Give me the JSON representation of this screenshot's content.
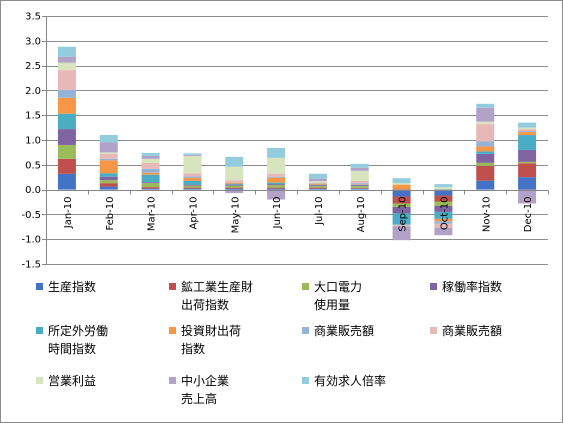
{
  "chart_data": {
    "type": "bar",
    "stacked": true,
    "categories": [
      "Jan-10",
      "Feb-10",
      "Mar-10",
      "Apr-10",
      "May-10",
      "Jun-10",
      "Jul-10",
      "Aug-10",
      "Sep-10",
      "Oct-10",
      "Nov-10",
      "Dec-10"
    ],
    "ylim": [
      -1.5,
      3.5
    ],
    "yticks": [
      "3.5",
      "3.0",
      "2.5",
      "2.0",
      "1.5",
      "1.0",
      "0.5",
      "0.0",
      "-0.5",
      "-1.0",
      "-1.5"
    ],
    "ytick_values": [
      3.5,
      3.0,
      2.5,
      2.0,
      1.5,
      1.0,
      0.5,
      0.0,
      -0.5,
      -1.0,
      -1.5
    ],
    "grid": true,
    "legend_position": "bottom",
    "series": [
      {
        "name": "生産指数",
        "legend_label": "生産指数",
        "color": "#4472C4",
        "values": [
          0.32,
          0.06,
          0.02,
          0.02,
          0.02,
          0.02,
          0.02,
          0.02,
          -0.14,
          -0.12,
          0.18,
          0.25
        ]
      },
      {
        "name": "鉱工業生産財出荷指数",
        "legend_label": "鉱工業生産財\n出荷指数",
        "color": "#C0504D",
        "values": [
          0.3,
          0.07,
          0.03,
          0.02,
          0.02,
          0.02,
          0.02,
          0.01,
          -0.14,
          -0.12,
          0.3,
          0.28
        ]
      },
      {
        "name": "大口電力使用量",
        "legend_label": "大口電力\n使用量",
        "color": "#9BBB59",
        "values": [
          0.28,
          0.06,
          0.08,
          0.04,
          0.04,
          0.05,
          0.03,
          0.04,
          -0.07,
          -0.09,
          0.06,
          0.03
        ]
      },
      {
        "name": "稼働率指数",
        "legend_label": "稼働率指数",
        "color": "#8064A2",
        "values": [
          0.32,
          0.07,
          0.02,
          0.02,
          0.02,
          0.02,
          0.02,
          0.02,
          -0.13,
          -0.12,
          0.18,
          0.24
        ]
      },
      {
        "name": "所定外労働時間指数",
        "legend_label": "所定外労働\n時間指数",
        "color": "#4BACC6",
        "values": [
          0.31,
          0.07,
          0.15,
          0.08,
          0.02,
          0.03,
          0.01,
          0.01,
          -0.22,
          -0.14,
          0.05,
          0.3
        ]
      },
      {
        "name": "投資財出荷指数",
        "legend_label": "投資財出荷\n指数",
        "color": "#F79646",
        "values": [
          0.32,
          0.26,
          0.04,
          0.06,
          0.02,
          0.1,
          0.02,
          0.01,
          0.1,
          -0.05,
          0.1,
          0.06
        ]
      },
      {
        "name": "商業販売額1",
        "legend_label": "商業販売額",
        "color": "#95B3D7",
        "values": [
          0.16,
          0.03,
          0.08,
          0.03,
          -0.02,
          0.02,
          0.01,
          0.02,
          -0.02,
          -0.05,
          0.1,
          0.02
        ]
      },
      {
        "name": "商業販売額2",
        "legend_label": "商業販売額",
        "color": "#E6B9B8",
        "values": [
          0.4,
          0.1,
          0.12,
          0.06,
          0.05,
          0.06,
          0.01,
          0.05,
          -0.02,
          -0.08,
          0.35,
          0.04
        ]
      },
      {
        "name": "営業利益",
        "legend_label": "営業利益",
        "color": "#D7E4BD",
        "values": [
          0.15,
          0.03,
          0.08,
          0.35,
          0.27,
          0.32,
          0.03,
          0.2,
          0.03,
          0.05,
          0.05,
          0.03
        ]
      },
      {
        "name": "中小企業売上高",
        "legend_label": "中小企業\n売上高",
        "color": "#B3A2C7",
        "values": [
          0.12,
          0.2,
          0.06,
          0.02,
          -0.05,
          -0.2,
          0.05,
          0.06,
          -0.28,
          -0.15,
          0.28,
          -0.28
        ]
      },
      {
        "name": "有効求人倍率",
        "legend_label": "有効求人倍率",
        "color": "#93CDDD",
        "values": [
          0.2,
          0.15,
          0.06,
          0.03,
          0.2,
          0.2,
          0.1,
          0.08,
          0.1,
          0.06,
          0.08,
          0.1
        ]
      }
    ]
  }
}
